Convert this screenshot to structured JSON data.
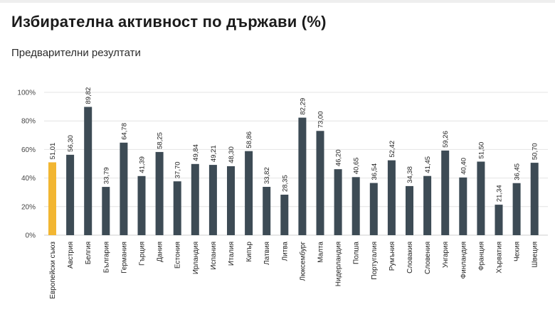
{
  "chart_data": {
    "type": "bar",
    "title": "Избирателна активност по държави (%)",
    "subtitle": "Предварителни резултати",
    "xlabel": "",
    "ylabel": "",
    "ylim": [
      0,
      100
    ],
    "yticks": [
      "0%",
      "20%",
      "40%",
      "60%",
      "80%",
      "100%"
    ],
    "grid": true,
    "categories": [
      "Европейски съюз",
      "Австрия",
      "Белгия",
      "България",
      "Германия",
      "Гърция",
      "Дания",
      "Естония",
      "Ирландия",
      "Испания",
      "Италия",
      "Кипър",
      "Латвия",
      "Литва",
      "Люксембург",
      "Малта",
      "Нидерландия",
      "Полша",
      "Португалия",
      "Румъния",
      "Словакия",
      "Словения",
      "Унгария",
      "Финландия",
      "Франция",
      "Хърватия",
      "Чехия",
      "Швеция"
    ],
    "values": [
      51.01,
      56.3,
      89.82,
      33.79,
      64.78,
      41.39,
      58.25,
      37.7,
      49.84,
      49.21,
      48.3,
      58.86,
      33.82,
      28.35,
      82.29,
      73.0,
      46.2,
      40.65,
      36.54,
      52.42,
      34.38,
      41.45,
      59.26,
      40.4,
      51.5,
      21.34,
      36.45,
      50.7
    ],
    "value_labels": [
      "51,01",
      "56,30",
      "89,82",
      "33,79",
      "64,78",
      "41,39",
      "58,25",
      "37,70",
      "49,84",
      "49,21",
      "48,30",
      "58,86",
      "33,82",
      "28,35",
      "82,29",
      "73,00",
      "46,20",
      "40,65",
      "36,54",
      "52,42",
      "34,38",
      "41,45",
      "59,26",
      "40,40",
      "51,50",
      "21,34",
      "36,45",
      "50,70"
    ],
    "colors": {
      "highlight": "#f2b632",
      "bar": "#3d4b55",
      "grid": "#e4e4e4"
    },
    "highlight_category": "Европейски съюз"
  }
}
